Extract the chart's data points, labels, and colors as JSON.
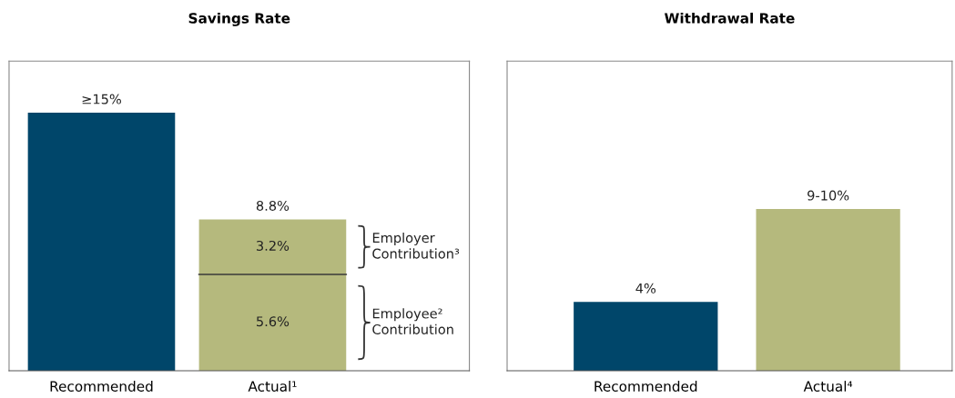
{
  "chart_data": [
    {
      "type": "bar",
      "title": "Savings Rate",
      "categories": [
        "Recommended",
        "Actual¹"
      ],
      "stacked": true,
      "ylim": [
        0,
        18
      ],
      "tick_labels": "x",
      "series": [
        {
          "color": "#00466a",
          "values": [
            15,
            null
          ],
          "value_labels": [
            "≥15%",
            null
          ]
        },
        {
          "name": "Employee²\nContribution",
          "color": "#b5b97d",
          "values": [
            null,
            5.6
          ],
          "value_labels": [
            null,
            "5.6%"
          ]
        },
        {
          "name": "Employer\nContribution³",
          "color": "#b5b97d",
          "values": [
            null,
            3.2
          ],
          "value_labels": [
            null,
            "3.2%"
          ]
        }
      ],
      "totals": [
        null,
        "8.8%"
      ]
    },
    {
      "type": "bar",
      "title": "Withdrawal Rate",
      "categories": [
        "Recommended",
        "Actual⁴"
      ],
      "ylim": [
        0,
        18
      ],
      "tick_labels": "x",
      "values": [
        4,
        9.4
      ],
      "colors": [
        "#00466a",
        "#b5b97d"
      ],
      "value_labels": [
        "4%",
        "9-10%"
      ]
    }
  ]
}
